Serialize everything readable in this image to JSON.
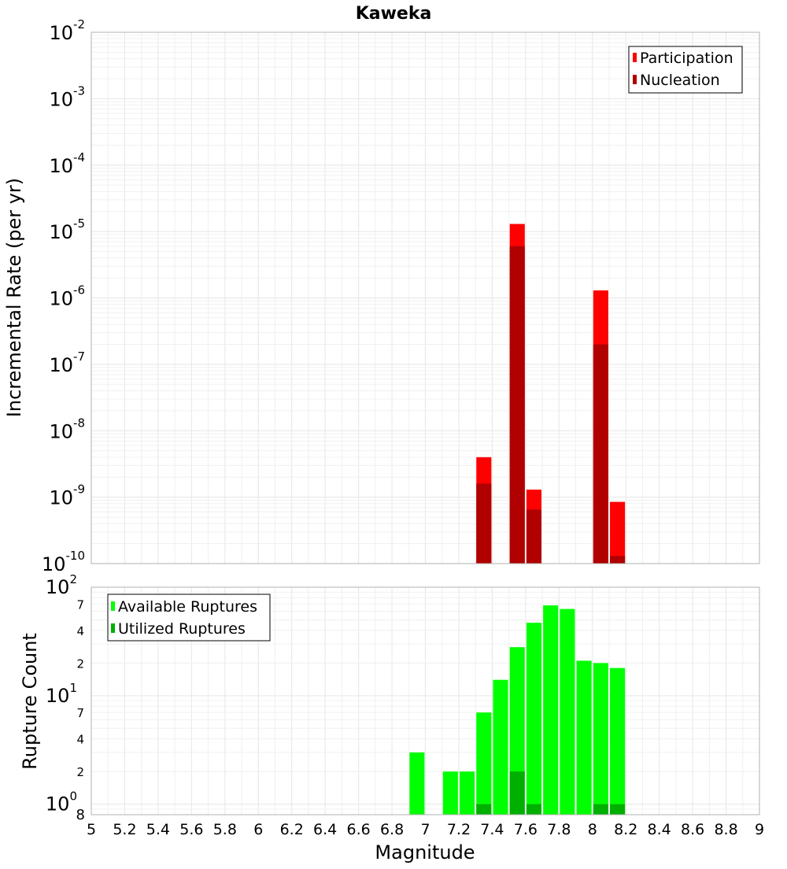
{
  "chart_data": [
    {
      "type": "bar",
      "title": "Kaweka",
      "xlabel": "",
      "ylabel": "Incremental Rate (per yr)",
      "y_scale": "log",
      "ylim": [
        1e-10,
        0.01
      ],
      "y_ticks": [
        {
          "base": "10",
          "exp": "-2"
        },
        {
          "base": "10",
          "exp": "-3"
        },
        {
          "base": "10",
          "exp": "-4"
        },
        {
          "base": "10",
          "exp": "-5"
        },
        {
          "base": "10",
          "exp": "-6"
        },
        {
          "base": "10",
          "exp": "-7"
        },
        {
          "base": "10",
          "exp": "-8"
        },
        {
          "base": "10",
          "exp": "-9"
        },
        {
          "base": "10",
          "exp": "-10"
        }
      ],
      "xlim": [
        5,
        9
      ],
      "grid": true,
      "legend_position": "top-right",
      "colors": {
        "Participation": "#ff0000",
        "Nucleation": "#b00000"
      },
      "series": [
        {
          "name": "Participation",
          "x": [
            7.35,
            7.55,
            7.65,
            8.05,
            8.15
          ],
          "values": [
            4e-09,
            1.3e-05,
            1.3e-09,
            1.3e-06,
            8.5e-10
          ]
        },
        {
          "name": "Nucleation",
          "x": [
            7.35,
            7.55,
            7.65,
            8.05,
            8.15
          ],
          "values": [
            1.6e-09,
            6e-06,
            6.5e-10,
            2e-07,
            1.3e-10
          ]
        }
      ]
    },
    {
      "type": "bar",
      "xlabel": "Magnitude",
      "ylabel": "Rupture Count",
      "y_scale": "log",
      "ylim": [
        0.8,
        100
      ],
      "y_major_ticks": [
        {
          "base": "10",
          "exp": "2"
        },
        {
          "base": "10",
          "exp": "1"
        },
        {
          "base": "10",
          "exp": "0"
        }
      ],
      "y_minor_labels": [
        "7",
        "4",
        "2",
        "7",
        "4",
        "2",
        "8"
      ],
      "x_ticks": [
        "5",
        "5.2",
        "5.4",
        "5.6",
        "5.8",
        "6",
        "6.2",
        "6.4",
        "6.6",
        "6.8",
        "7",
        "7.2",
        "7.4",
        "7.6",
        "7.8",
        "8",
        "8.2",
        "8.4",
        "8.6",
        "8.8",
        "9"
      ],
      "xlim": [
        5,
        9
      ],
      "grid": true,
      "legend_position": "top-left",
      "colors": {
        "Available Ruptures": "#00ff00",
        "Utilized Ruptures": "#00b000"
      },
      "series": [
        {
          "name": "Available Ruptures",
          "x": [
            6.95,
            7.15,
            7.25,
            7.35,
            7.45,
            7.55,
            7.65,
            7.75,
            7.85,
            7.95,
            8.05,
            8.15
          ],
          "values": [
            3,
            2,
            2,
            7,
            14,
            28,
            47,
            68,
            63,
            21,
            20,
            18
          ]
        },
        {
          "name": "Utilized Ruptures",
          "x": [
            7.35,
            7.55,
            7.65,
            8.05,
            8.15
          ],
          "values": [
            1,
            2,
            1,
            1,
            1
          ]
        }
      ]
    }
  ]
}
